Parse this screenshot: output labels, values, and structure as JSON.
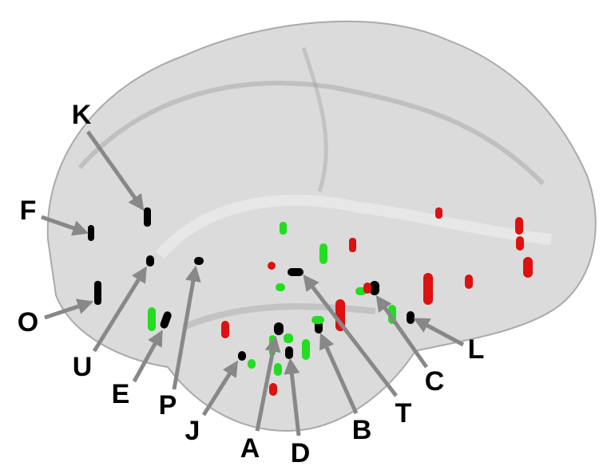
{
  "labels": [
    "K",
    "F",
    "O",
    "U",
    "E",
    "P",
    "J",
    "A",
    "D",
    "B",
    "T",
    "C",
    "L"
  ]
}
